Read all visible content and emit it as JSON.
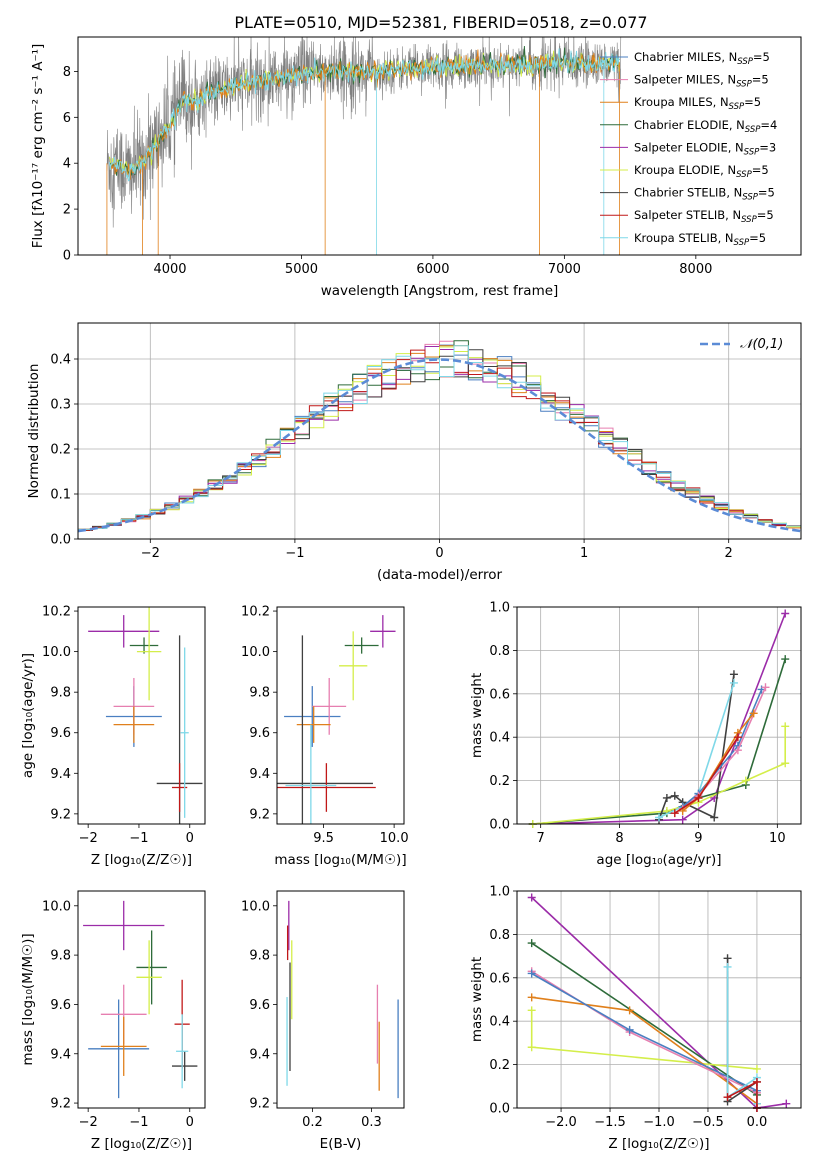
{
  "figure": {
    "title": "PLATE=0510, MJD=52381, FIBERID=0518, z=0.077"
  },
  "colors": {
    "Chabrier MILES": "#4a7fc1",
    "Salpeter MILES": "#e67fb0",
    "Kroupa MILES": "#e0801c",
    "Chabrier ELODIE": "#2e6b3a",
    "Salpeter ELODIE": "#9b2ca8",
    "Kroupa ELODIE": "#d4ee4a",
    "Chabrier STELIB": "#404040",
    "Salpeter STELIB": "#c01818",
    "Kroupa STELIB": "#7fd8e8",
    "data": "#808080",
    "normal": "#5b8bd6"
  },
  "chart_data": [
    {
      "type": "line",
      "id": "spectrum",
      "title": "PLATE=0510, MJD=52381, FIBERID=0518, z=0.077",
      "xlabel": "wavelength [Angstrom, rest frame]",
      "ylabel": "Flux [fλ10⁻¹⁷ erg cm⁻² s⁻¹ A⁻¹]",
      "xlim": [
        3300,
        8800
      ],
      "ylim": [
        0,
        9.5
      ],
      "xticks": [
        4000,
        5000,
        6000,
        7000,
        8000
      ],
      "yticks": [
        0,
        2,
        4,
        6,
        8
      ],
      "grid": false,
      "legend_position": "right",
      "legend": [
        "Chabrier MILES, N_SSP=5",
        "Salpeter MILES, N_SSP=5",
        "Kroupa MILES, N_SSP=5",
        "Chabrier ELODIE, N_SSP=4",
        "Salpeter ELODIE, N_SSP=3",
        "Kroupa ELODIE, N_SSP=5",
        "Chabrier STELIB, N_SSP=5",
        "Salpeter STELIB, N_SSP=5",
        "Kroupa STELIB, N_SSP=5"
      ],
      "model_continuum": {
        "x": [
          3520,
          3600,
          3700,
          3800,
          3900,
          4000,
          4100,
          4200,
          4300,
          4400,
          4500,
          4600,
          4800,
          5000,
          5200,
          5500,
          5800,
          6000,
          6200,
          6500,
          6800,
          7000,
          7200,
          7420
        ],
        "y": [
          4.0,
          3.9,
          3.6,
          4.1,
          4.9,
          5.7,
          6.8,
          6.7,
          7.1,
          7.2,
          7.4,
          7.5,
          7.7,
          7.9,
          8.0,
          8.0,
          8.1,
          8.2,
          8.2,
          8.3,
          8.3,
          8.4,
          8.3,
          8.4
        ]
      }
    },
    {
      "type": "histogram",
      "id": "residuals",
      "xlabel": "(data-model)/error",
      "ylabel": "Normed distribution",
      "xlim": [
        -2.5,
        2.5
      ],
      "ylim": [
        0,
        0.48
      ],
      "xticks": [
        -2,
        -1,
        0,
        1,
        2
      ],
      "yticks": [
        0.0,
        0.1,
        0.2,
        0.3,
        0.4
      ],
      "grid": true,
      "legend": [
        "𝒩(0,1)"
      ],
      "legend_position": "top-right",
      "bin_width": 0.1
    },
    {
      "type": "errorbar",
      "id": "age-vs-Z",
      "xlabel": "Z [log₁₀(Z/Z☉)]",
      "ylabel": "age  [log₁₀(age/yr)]",
      "xlim": [
        -2.2,
        0.3
      ],
      "ylim": [
        9.15,
        10.22
      ],
      "xticks": [
        -2,
        -1,
        0
      ],
      "yticks": [
        9.2,
        9.4,
        9.6,
        9.8,
        10.0,
        10.2
      ],
      "points": [
        {
          "model": "Salpeter ELODIE",
          "x": -1.3,
          "xerr": 0.7,
          "y": 10.1,
          "yerr": 0.08
        },
        {
          "model": "Chabrier ELODIE",
          "x": -0.9,
          "xerr": 0.28,
          "y": 10.03,
          "yerr": 0.04
        },
        {
          "model": "Kroupa ELODIE",
          "x": -0.8,
          "xerr": 0.24,
          "y": 10.0,
          "yerr": 0.24
        },
        {
          "model": "Chabrier MILES",
          "x": -1.1,
          "xerr": 0.55,
          "y": 9.68,
          "yerr": 0.15
        },
        {
          "model": "Salpeter MILES",
          "x": -1.1,
          "xerr": 0.4,
          "y": 9.73,
          "yerr": 0.14
        },
        {
          "model": "Kroupa MILES",
          "x": -1.1,
          "xerr": 0.4,
          "y": 9.64,
          "yerr": 0.09
        },
        {
          "model": "Chabrier STELIB",
          "x": -0.2,
          "xerr": 0.45,
          "y": 9.35,
          "yerr": 0.73
        },
        {
          "model": "Salpeter STELIB",
          "x": -0.2,
          "xerr": 0.15,
          "y": 9.33,
          "yerr": 0.12
        },
        {
          "model": "Kroupa STELIB",
          "x": -0.1,
          "xerr": 0.08,
          "y": 9.6,
          "yerr": 0.42
        }
      ]
    },
    {
      "type": "errorbar",
      "id": "age-vs-mass",
      "xlabel": "mass [log₁₀(M/M☉)]",
      "xlim": [
        9.17,
        10.07
      ],
      "ylim": [
        9.15,
        10.22
      ],
      "xticks": [
        9.5,
        10.0
      ],
      "yticks": [
        9.2,
        9.4,
        9.6,
        9.8,
        10.0,
        10.2
      ],
      "points": [
        {
          "model": "Salpeter ELODIE",
          "x": 9.92,
          "xerr": 0.09,
          "y": 10.1,
          "yerr": 0.08
        },
        {
          "model": "Chabrier ELODIE",
          "x": 9.77,
          "xerr": 0.12,
          "y": 10.03,
          "yerr": 0.04
        },
        {
          "model": "Kroupa ELODIE",
          "x": 9.71,
          "xerr": 0.1,
          "y": 9.93,
          "yerr": 0.17
        },
        {
          "model": "Chabrier MILES",
          "x": 9.42,
          "xerr": 0.2,
          "y": 9.68,
          "yerr": 0.15
        },
        {
          "model": "Salpeter MILES",
          "x": 9.54,
          "xerr": 0.12,
          "y": 9.73,
          "yerr": 0.14
        },
        {
          "model": "Kroupa MILES",
          "x": 9.43,
          "xerr": 0.12,
          "y": 9.64,
          "yerr": 0.09
        },
        {
          "model": "Chabrier STELIB",
          "x": 9.35,
          "xerr": 0.5,
          "y": 9.35,
          "yerr": 0.73
        },
        {
          "model": "Salpeter STELIB",
          "x": 9.52,
          "xerr": 0.35,
          "y": 9.33,
          "yerr": 0.12
        },
        {
          "model": "Kroupa STELIB",
          "x": 9.41,
          "xerr": 0.18,
          "y": 9.34,
          "yerr": 0.3
        }
      ]
    },
    {
      "type": "line",
      "id": "weight-vs-age",
      "xlabel": "age  [log₁₀(age/yr)]",
      "ylabel": "mass weight",
      "xlim": [
        6.7,
        10.3
      ],
      "ylim": [
        0,
        1.0
      ],
      "xticks": [
        7,
        8,
        9,
        10
      ],
      "yticks": [
        0.0,
        0.2,
        0.4,
        0.6,
        0.8,
        1.0
      ],
      "grid": true,
      "series": [
        {
          "model": "Salpeter ELODIE",
          "x": [
            6.9,
            8.8,
            9.2,
            10.1
          ],
          "y": [
            0.0,
            0.02,
            0.12,
            0.97
          ]
        },
        {
          "model": "Chabrier ELODIE",
          "x": [
            6.9,
            8.6,
            9.0,
            9.6,
            10.1
          ],
          "y": [
            0.0,
            0.05,
            0.12,
            0.18,
            0.76
          ]
        },
        {
          "model": "Kroupa ELODIE",
          "x": [
            6.9,
            8.6,
            9.0,
            9.6,
            10.1,
            10.1
          ],
          "y": [
            0.0,
            0.06,
            0.1,
            0.2,
            0.28,
            0.45
          ]
        },
        {
          "model": "Chabrier STELIB",
          "x": [
            8.5,
            8.6,
            8.7,
            8.8,
            9.2,
            9.45
          ],
          "y": [
            0.02,
            0.12,
            0.13,
            0.1,
            0.03,
            0.69
          ]
        },
        {
          "model": "Kroupa STELIB",
          "x": [
            8.5,
            8.8,
            9.0,
            9.45
          ],
          "y": [
            0.03,
            0.08,
            0.14,
            0.65
          ]
        },
        {
          "model": "Chabrier MILES",
          "x": [
            8.8,
            9.0,
            9.5,
            9.8
          ],
          "y": [
            0.08,
            0.14,
            0.36,
            0.62
          ]
        },
        {
          "model": "Salpeter MILES",
          "x": [
            8.8,
            9.0,
            9.5,
            9.85
          ],
          "y": [
            0.07,
            0.13,
            0.34,
            0.63
          ]
        },
        {
          "model": "Kroupa MILES",
          "x": [
            8.8,
            9.0,
            9.5,
            9.7
          ],
          "y": [
            0.06,
            0.12,
            0.42,
            0.51
          ]
        },
        {
          "model": "Salpeter STELIB",
          "x": [
            8.7,
            9.0,
            9.5
          ],
          "y": [
            0.05,
            0.12,
            0.4
          ]
        }
      ]
    },
    {
      "type": "errorbar",
      "id": "mass-vs-Z",
      "xlabel": "Z [log₁₀(Z/Z☉)]",
      "ylabel": "mass [log₁₀(M/M☉)]",
      "xlim": [
        -2.2,
        0.3
      ],
      "ylim": [
        9.18,
        10.06
      ],
      "xticks": [
        -2,
        -1,
        0
      ],
      "yticks": [
        9.2,
        9.4,
        9.6,
        9.8,
        10.0
      ],
      "points": [
        {
          "model": "Salpeter ELODIE",
          "x": -1.3,
          "xerr": 0.8,
          "y": 9.92,
          "yerr": 0.1
        },
        {
          "model": "Chabrier ELODIE",
          "x": -0.75,
          "xerr": 0.3,
          "y": 9.75,
          "yerr": 0.15
        },
        {
          "model": "Kroupa ELODIE",
          "x": -0.8,
          "xerr": 0.25,
          "y": 9.71,
          "yerr": 0.15
        },
        {
          "model": "Chabrier MILES",
          "x": -1.4,
          "xerr": 0.6,
          "y": 9.42,
          "yerr": 0.2
        },
        {
          "model": "Salpeter MILES",
          "x": -1.3,
          "xerr": 0.45,
          "y": 9.56,
          "yerr": 0.12
        },
        {
          "model": "Kroupa MILES",
          "x": -1.3,
          "xerr": 0.45,
          "y": 9.43,
          "yerr": 0.12
        },
        {
          "model": "Chabrier STELIB",
          "x": -0.1,
          "xerr": 0.25,
          "y": 9.35,
          "yerr": 0.06
        },
        {
          "model": "Salpeter STELIB",
          "x": -0.15,
          "xerr": 0.15,
          "y": 9.52,
          "yerr": 0.18
        },
        {
          "model": "Kroupa STELIB",
          "x": -0.15,
          "xerr": 0.12,
          "y": 9.41,
          "yerr": 0.15
        }
      ]
    },
    {
      "type": "errorbar",
      "id": "mass-vs-EBV",
      "xlabel": "E(B-V)",
      "xlim": [
        0.14,
        0.355
      ],
      "ylim": [
        9.18,
        10.06
      ],
      "xticks": [
        0.2,
        0.3
      ],
      "yticks": [
        9.2,
        9.4,
        9.6,
        9.8,
        10.0
      ],
      "points": [
        {
          "model": "Salpeter ELODIE",
          "x": 0.16,
          "y": 9.92,
          "yerr": 0.1
        },
        {
          "model": "Salpeter STELIB",
          "x": 0.158,
          "y": 9.85,
          "yerr": 0.07
        },
        {
          "model": "Kroupa ELODIE",
          "x": 0.165,
          "y": 9.7,
          "yerr": 0.16
        },
        {
          "model": "Chabrier STELIB",
          "x": 0.162,
          "y": 9.55,
          "yerr": 0.22
        },
        {
          "model": "Kroupa STELIB",
          "x": 0.157,
          "y": 9.45,
          "yerr": 0.18
        },
        {
          "model": "Salpeter MILES",
          "x": 0.31,
          "y": 9.52,
          "yerr": 0.16
        },
        {
          "model": "Kroupa MILES",
          "x": 0.313,
          "y": 9.39,
          "yerr": 0.14
        },
        {
          "model": "Chabrier MILES",
          "x": 0.345,
          "y": 9.42,
          "yerr": 0.2
        }
      ]
    },
    {
      "type": "line",
      "id": "weight-vs-Z",
      "xlabel": "Z [log₁₀(Z/Z☉)]",
      "ylabel": "mass weight",
      "xlim": [
        -2.45,
        0.45
      ],
      "ylim": [
        0,
        1.0
      ],
      "xticks": [
        -2.0,
        -1.5,
        -1.0,
        -0.5,
        0.0
      ],
      "yticks": [
        0.0,
        0.2,
        0.4,
        0.6,
        0.8,
        1.0
      ],
      "grid": true,
      "series": [
        {
          "model": "Salpeter ELODIE",
          "x": [
            -2.3,
            0.0,
            0.3
          ],
          "y": [
            0.97,
            0.0,
            0.02
          ]
        },
        {
          "model": "Chabrier ELODIE",
          "x": [
            -2.3,
            0.0
          ],
          "y": [
            0.76,
            0.06
          ]
        },
        {
          "model": "Kroupa ELODIE",
          "x": [
            -2.3,
            -2.3,
            0.0
          ],
          "y": [
            0.45,
            0.28,
            0.18
          ]
        },
        {
          "model": "Kroupa MILES",
          "x": [
            -2.3,
            -1.3,
            0.0
          ],
          "y": [
            0.51,
            0.45,
            0.02
          ]
        },
        {
          "model": "Salpeter MILES",
          "x": [
            -2.3,
            -1.3,
            0.0
          ],
          "y": [
            0.63,
            0.35,
            0.07
          ]
        },
        {
          "model": "Chabrier MILES",
          "x": [
            -2.3,
            -1.3,
            0.0
          ],
          "y": [
            0.62,
            0.36,
            0.08
          ]
        },
        {
          "model": "Chabrier STELIB",
          "x": [
            -0.3,
            -0.3,
            0.0,
            0.0
          ],
          "y": [
            0.69,
            0.03,
            0.12,
            0.0
          ]
        },
        {
          "model": "Kroupa STELIB",
          "x": [
            -0.3,
            -0.3,
            0.0,
            0.0
          ],
          "y": [
            0.65,
            0.05,
            0.14,
            0.02
          ]
        },
        {
          "model": "Salpeter STELIB",
          "x": [
            -0.3,
            0.0,
            0.0
          ],
          "y": [
            0.05,
            0.12,
            0.0
          ]
        }
      ]
    }
  ]
}
